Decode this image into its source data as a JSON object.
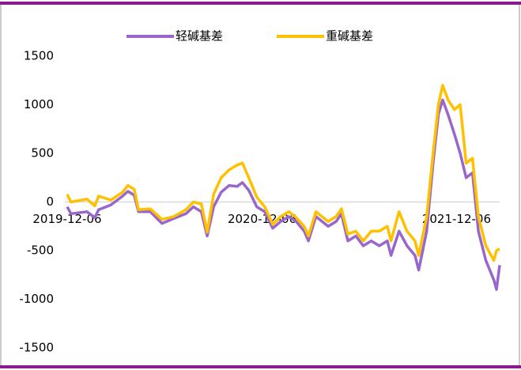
{
  "chart_data": {
    "type": "line",
    "x": [
      "2019-12-06",
      "2019-12-13",
      "2020-01-12",
      "2020-01-27",
      "2020-02-03",
      "2020-02-26",
      "2020-03-19",
      "2020-03-29",
      "2020-04-10",
      "2020-04-18",
      "2020-05-10",
      "2020-06-01",
      "2020-06-23",
      "2020-07-16",
      "2020-07-30",
      "2020-08-14",
      "2020-08-25",
      "2020-09-06",
      "2020-09-20",
      "2020-10-05",
      "2020-10-20",
      "2020-10-30",
      "2020-11-11",
      "2020-11-26",
      "2020-12-11",
      "2020-12-26",
      "2021-01-10",
      "2021-01-25",
      "2021-02-08",
      "2021-02-23",
      "2021-03-03",
      "2021-03-17",
      "2021-04-09",
      "2021-04-24",
      "2021-05-04",
      "2021-05-16",
      "2021-05-31",
      "2021-06-14",
      "2021-06-29",
      "2021-07-14",
      "2021-07-29",
      "2021-08-05",
      "2021-08-20",
      "2021-09-04",
      "2021-09-19",
      "2021-09-26",
      "2021-10-11",
      "2021-10-23",
      "2021-11-02",
      "2021-11-10",
      "2021-11-20",
      "2021-12-02",
      "2021-12-13",
      "2021-12-24",
      "2022-01-05",
      "2022-01-16",
      "2022-01-30",
      "2022-02-14",
      "2022-02-19",
      "2022-02-25"
    ],
    "series": [
      {
        "name": "轻碱基差",
        "color": "#9966cc",
        "values": [
          -50,
          -120,
          -100,
          -160,
          -80,
          -30,
          60,
          110,
          70,
          -100,
          -100,
          -220,
          -170,
          -120,
          -50,
          -100,
          -350,
          -50,
          100,
          170,
          160,
          200,
          120,
          -50,
          -100,
          -270,
          -200,
          -150,
          -200,
          -300,
          -400,
          -150,
          -250,
          -200,
          -120,
          -400,
          -350,
          -450,
          -400,
          -450,
          -400,
          -550,
          -300,
          -450,
          -550,
          -700,
          -300,
          400,
          900,
          1050,
          900,
          700,
          500,
          250,
          300,
          -300,
          -600,
          -800,
          -900,
          -650
        ]
      },
      {
        "name": "重碱基差",
        "color": "#ffc000",
        "values": [
          80,
          0,
          30,
          -40,
          60,
          20,
          100,
          170,
          130,
          -80,
          -70,
          -180,
          -150,
          -80,
          0,
          -20,
          -310,
          80,
          250,
          330,
          380,
          400,
          250,
          50,
          -50,
          -230,
          -150,
          -100,
          -160,
          -250,
          -350,
          -100,
          -200,
          -150,
          -70,
          -330,
          -300,
          -400,
          -300,
          -300,
          -250,
          -400,
          -100,
          -300,
          -400,
          -550,
          -150,
          500,
          1000,
          1200,
          1050,
          950,
          1000,
          400,
          450,
          -150,
          -450,
          -600,
          -500,
          -480
        ]
      }
    ],
    "xlim": [
      "2019-09-08",
      "2022-02-25"
    ],
    "xticks": [
      "2019-12-06",
      "2020-12-06",
      "2021-12-06"
    ],
    "ylim": [
      -1500,
      1500
    ],
    "yticks": [
      -1500,
      -1000,
      -500,
      0,
      500,
      1000,
      1500
    ]
  }
}
